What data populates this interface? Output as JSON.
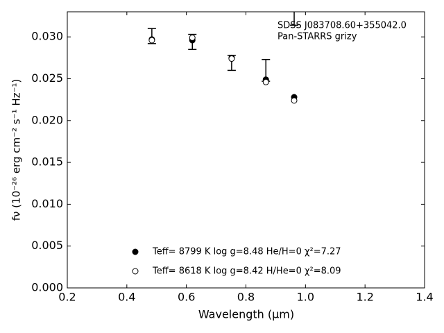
{
  "chart_data": {
    "type": "scatter",
    "x_label": "Wavelength (μm)",
    "y_label": "fν (10⁻²⁶ erg cm⁻² s⁻¹ Hz⁻¹)",
    "annotations": [
      "SDSS J083708.60+355042.0",
      "Pan-STARRS grizy"
    ],
    "x": [
      0.484,
      0.62,
      0.752,
      0.867,
      0.962
    ],
    "series": [
      {
        "name": "Teff=  8799 K  log g=8.48  He/H=0  χ²=7.27",
        "color": "#000000",
        "fill": true,
        "values": [
          0.0297,
          0.0296,
          0.0275,
          0.0249,
          0.0228
        ]
      },
      {
        "name": "Teff=  8618 K  log g=8.42  H/He=0  χ²=8.09",
        "color": "#000000",
        "fill": false,
        "values": [
          0.0296,
          0.0299,
          0.0274,
          0.0246,
          0.0224
        ]
      }
    ],
    "observed": {
      "values": [
        0.0301,
        0.0294,
        0.0269,
        0.026,
        0.033
      ],
      "errors": [
        0.0009,
        0.0009,
        0.0009,
        0.0013,
        0.0016
      ],
      "color": "#000000"
    },
    "xlim": [
      0.2,
      1.4
    ],
    "ylim": [
      0,
      0.033
    ],
    "xticks": [
      0.2,
      0.4,
      0.6,
      0.8,
      {
        "value": 1,
        "label": "1.0"
      },
      1.2,
      1.4
    ],
    "yticks": [
      {
        "value": 0,
        "label": "0.000"
      },
      {
        "value": 0.005,
        "label": "0.005"
      },
      {
        "value": 0.01,
        "label": "0.010"
      },
      {
        "value": 0.015,
        "label": "0.015"
      },
      {
        "value": 0.02,
        "label": "0.020"
      },
      {
        "value": 0.025,
        "label": "0.025"
      },
      {
        "value": 0.03,
        "label": "0.030"
      }
    ],
    "grid": false,
    "legend": "lower center"
  }
}
